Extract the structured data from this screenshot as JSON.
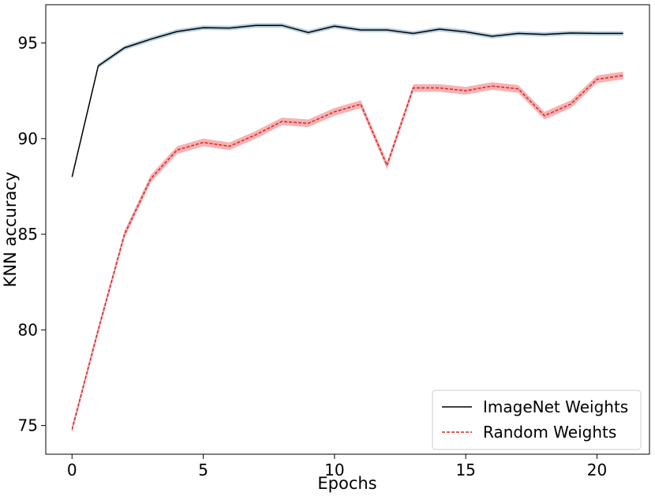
{
  "chart_data": {
    "type": "line",
    "xlabel": "Epochs",
    "ylabel": "KNN accuracy",
    "xlim": [
      -1,
      22
    ],
    "ylim": [
      73.5,
      97.0
    ],
    "x_ticks": [
      0,
      5,
      10,
      15,
      20
    ],
    "y_ticks": [
      75,
      80,
      85,
      90,
      95
    ],
    "grid": false,
    "legend_position": "lower-right",
    "x": [
      0,
      1,
      2,
      3,
      4,
      5,
      6,
      7,
      8,
      9,
      10,
      11,
      12,
      13,
      14,
      15,
      16,
      17,
      18,
      19,
      20,
      21
    ],
    "series": [
      {
        "name": "ImageNet Weights",
        "color": "#000000",
        "band_color": "#a9c7dc",
        "line_style": "solid",
        "values": [
          88.0,
          93.8,
          94.75,
          95.2,
          95.6,
          95.8,
          95.78,
          95.92,
          95.92,
          95.55,
          95.88,
          95.68,
          95.68,
          95.5,
          95.72,
          95.58,
          95.35,
          95.5,
          95.45,
          95.52,
          95.5,
          95.5
        ],
        "band": 0.12
      },
      {
        "name": "Random Weights",
        "color": "#d62728",
        "band_color": "#f4a5a5",
        "line_style": "dashed",
        "values": [
          74.8,
          80.0,
          85.0,
          87.9,
          89.4,
          89.8,
          89.6,
          90.2,
          90.9,
          90.8,
          91.4,
          91.8,
          88.6,
          92.65,
          92.65,
          92.5,
          92.75,
          92.6,
          91.2,
          91.8,
          93.1,
          93.3
        ],
        "band": 0.2
      }
    ]
  }
}
